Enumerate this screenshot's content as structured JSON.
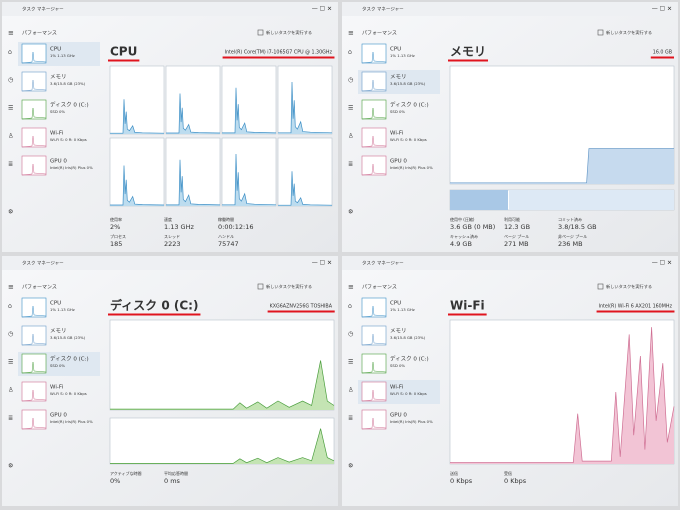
{
  "sidebar": [
    {
      "name": "CPU",
      "detail": "1% 1.13 GHz"
    },
    {
      "name": "メモリ",
      "detail": "3.6/15.8 GB (23%)"
    },
    {
      "name": "ディスク 0 (C:)",
      "detail": "SSD 0%"
    },
    {
      "name": "Wi-Fi",
      "detail": "Wi-Fi S: 0 R: 0 Kbps"
    },
    {
      "name": "GPU 0",
      "detail": "Intel(R) Iris(R) Plus 0%"
    }
  ],
  "panels": [
    {
      "title_bar": "タスク マネージャー",
      "section": "パフォーマンス",
      "action": "新しいタスクを実行する",
      "header": "CPU",
      "device": "Intel(R) Core(TM) i7-1065G7 CPU @ 1.30GHz",
      "stats": [
        {
          "label": "使用率",
          "value": "2%"
        },
        {
          "label": "速度",
          "value": "1.13 GHz"
        },
        {
          "label": "稼働時間",
          "value": "0:00:12:16"
        },
        {
          "label": "プロセス",
          "value": "185"
        },
        {
          "label": "スレッド",
          "value": "2223"
        },
        {
          "label": "ハンドル",
          "value": "75747"
        }
      ]
    },
    {
      "title_bar": "タスク マネージャー",
      "section": "パフォーマンス",
      "action": "新しいタスクを実行する",
      "header": "メモリ",
      "device": "16.0 GB",
      "stats": [
        {
          "label": "使用中 (圧縮)",
          "value": "3.6 GB (0 MB)"
        },
        {
          "label": "利用可能",
          "value": "12.3 GB"
        },
        {
          "label": "コミット済み",
          "value": "3.8/18.5 GB"
        },
        {
          "label": "キャッシュ済み",
          "value": "4.9 GB"
        },
        {
          "label": "ページ プール",
          "value": "271 MB"
        },
        {
          "label": "非ページ プール",
          "value": "236 MB"
        }
      ]
    },
    {
      "title_bar": "タスク マネージャー",
      "section": "パフォーマンス",
      "action": "新しいタスクを実行する",
      "header": "ディスク 0 (C:)",
      "device": "KXG6AZNV256G TOSHIBA",
      "stats": [
        {
          "label": "アクティブな時間",
          "value": "0%"
        },
        {
          "label": "平均応答時間",
          "value": "0 ms"
        }
      ]
    },
    {
      "title_bar": "タスク マネージャー",
      "section": "パフォーマンス",
      "action": "新しいタスクを実行する",
      "header": "Wi-Fi",
      "device": "Intel(R) Wi-Fi 6 AX201 160MHz",
      "stats": [
        {
          "label": "送信",
          "value": "0 Kbps"
        },
        {
          "label": "受信",
          "value": "0 Kbps"
        }
      ]
    }
  ]
}
